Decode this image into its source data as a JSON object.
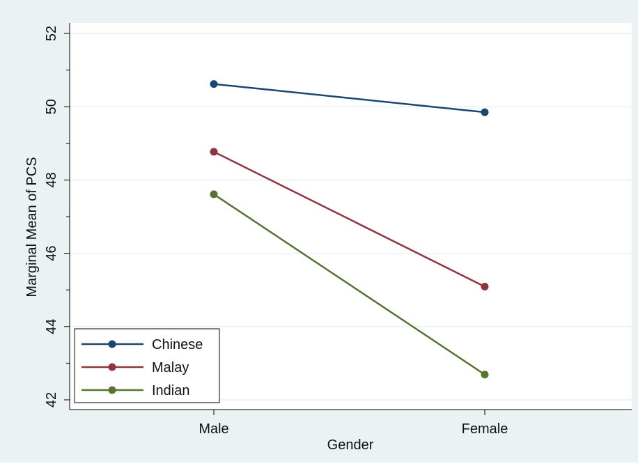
{
  "chart_data": {
    "type": "line",
    "categories": [
      "Male",
      "Female"
    ],
    "series": [
      {
        "name": "Chinese",
        "values": [
          50.62,
          49.85
        ],
        "color": "#1a476f"
      },
      {
        "name": "Malay",
        "values": [
          48.77,
          45.09
        ],
        "color": "#90353b"
      },
      {
        "name": "Indian",
        "values": [
          47.61,
          42.69
        ],
        "color": "#55752f"
      }
    ],
    "xlabel": "Gender",
    "ylabel": "Marginal Mean of PCS",
    "ylim": [
      42,
      52
    ],
    "yticks": [
      "42",
      "44",
      "46",
      "48",
      "50",
      "52"
    ],
    "grid": true,
    "legend_position": "bottom-left"
  },
  "colors": {
    "background": "#eaf2f3",
    "plot_background": "#ffffff",
    "grid": "#eaf2f3",
    "axis": "#000000"
  }
}
